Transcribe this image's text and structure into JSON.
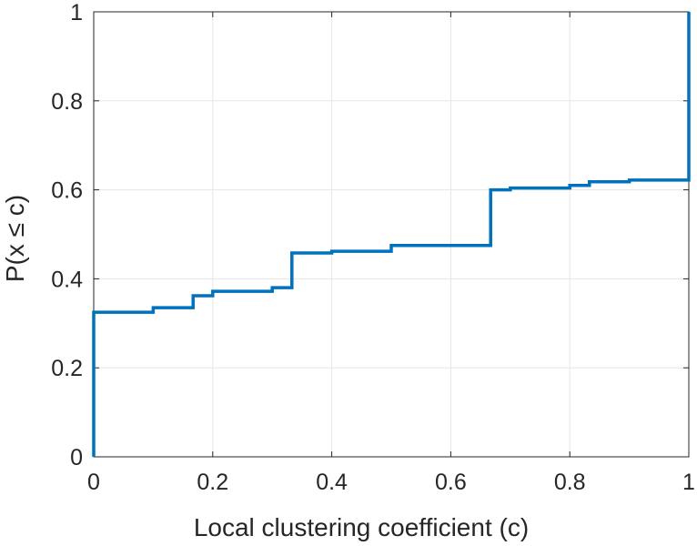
{
  "chart_data": {
    "type": "line",
    "subtype": "stairs (empirical CDF)",
    "xlabel": "Local clustering coefficient (c)",
    "ylabel": "P(x ≤ c)",
    "xlim": [
      0,
      1
    ],
    "ylim": [
      0,
      1
    ],
    "xticks": [
      "0",
      "0.2",
      "0.4",
      "0.6",
      "0.8",
      "1"
    ],
    "yticks": [
      "0",
      "0.2",
      "0.4",
      "0.6",
      "0.8",
      "1"
    ],
    "grid": true,
    "legend": "none",
    "series": [
      {
        "color": "#0072BD",
        "x": [
          0,
          0,
          0.1,
          0.167,
          0.2,
          0.3,
          0.333,
          0.4,
          0.5,
          0.667,
          0.7,
          0.8,
          0.833,
          0.9,
          1,
          1
        ],
        "y": [
          0,
          0.325,
          0.335,
          0.362,
          0.372,
          0.38,
          0.458,
          0.462,
          0.475,
          0.6,
          0.604,
          0.61,
          0.618,
          0.622,
          0.625,
          1
        ]
      }
    ]
  }
}
